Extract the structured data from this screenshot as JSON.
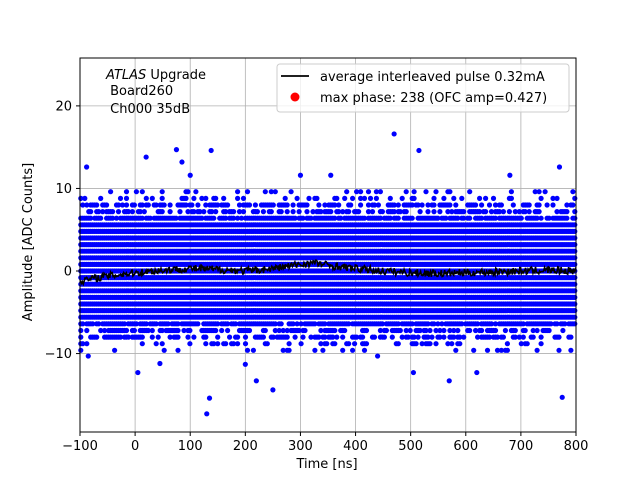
{
  "chart_data": {
    "type": "scatter",
    "xlabel": "Time [ns]",
    "ylabel": "Amplitude [ADC Counts]",
    "xlim": [
      -100,
      800
    ],
    "ylim": [
      -19.5,
      25.8
    ],
    "x_ticks": [
      -100,
      0,
      100,
      200,
      300,
      400,
      500,
      600,
      700,
      800
    ],
    "y_ticks": [
      -10,
      0,
      10,
      20
    ],
    "grid": true,
    "legend_position": "top-right",
    "annotation": {
      "experiment": "ATLAS",
      "line1_suffix": " Upgrade",
      "line2": " Board260",
      "line3": " Ch000 35dB"
    },
    "series": [
      {
        "name": "average interleaved pulse 0.32mA",
        "type": "line",
        "color": "#000000",
        "x": [
          -100,
          -50,
          0,
          50,
          100,
          150,
          200,
          250,
          300,
          325,
          350,
          400,
          450,
          500,
          550,
          600,
          650,
          700,
          750,
          800
        ],
        "y": [
          -1.2,
          -0.6,
          -0.2,
          0.1,
          0.3,
          0.2,
          0.0,
          0.3,
          0.8,
          1.0,
          0.7,
          0.3,
          0.0,
          -0.2,
          -0.3,
          -0.2,
          -0.1,
          0.0,
          0.1,
          0.0
        ]
      },
      {
        "name": "max phase: 238 (OFC amp=0.427)",
        "type": "scatter",
        "color": "#ff0000",
        "x": [],
        "y": []
      },
      {
        "name": "",
        "type": "scatter",
        "color": "#0000ff",
        "x": [
          -88,
          20,
          75,
          85,
          138,
          470,
          515,
          770,
          -85,
          5,
          45,
          130,
          135,
          220,
          250,
          505,
          570,
          620,
          775,
          100,
          300,
          355,
          680,
          200,
          440
        ],
        "y": [
          12.6,
          13.8,
          14.7,
          13.2,
          14.6,
          16.6,
          14.6,
          12.6,
          -10.3,
          -12.3,
          -11.2,
          -17.3,
          -15.4,
          -13.3,
          -14.4,
          -12.3,
          -13.3,
          -12.3,
          -15.3,
          11.6,
          11.6,
          11.6,
          11.6,
          -11.3,
          -10.3
        ]
      }
    ]
  }
}
